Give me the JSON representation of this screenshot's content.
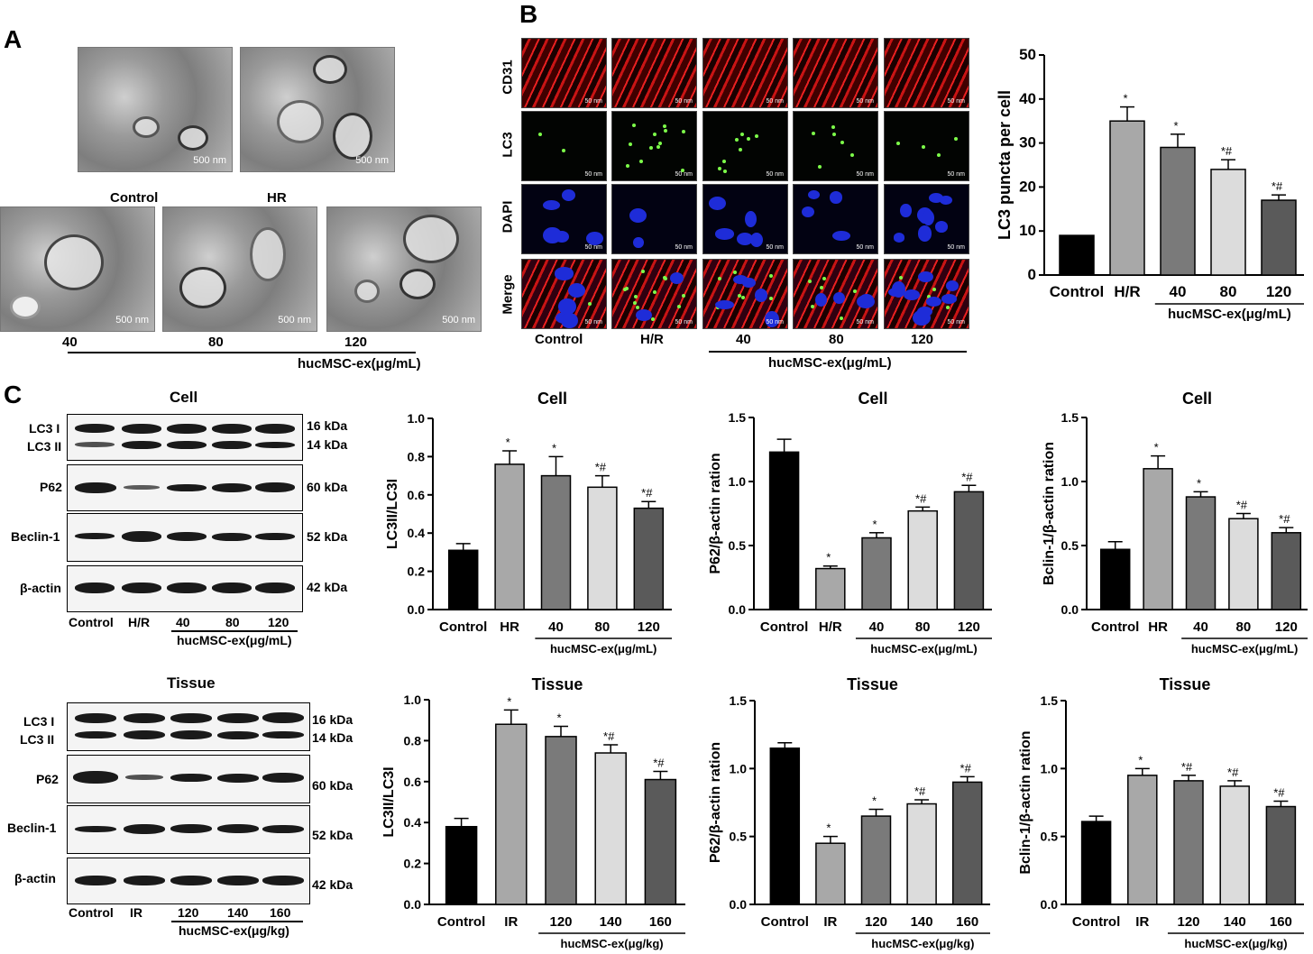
{
  "panels": {
    "a": "A",
    "b": "B",
    "c": "C"
  },
  "panel_a": {
    "scale_label": "500 nm",
    "top_labels": [
      "Control",
      "HR"
    ],
    "bottom_labels": [
      "40",
      "80",
      "120"
    ],
    "group_label": "hucMSC-ex(μg/mL)"
  },
  "panel_b": {
    "row_labels": [
      "CD31",
      "LC3",
      "DAPI",
      "Merge"
    ],
    "col_labels": [
      "Control",
      "H/R",
      "40",
      "80",
      "120"
    ],
    "group_label": "hucMSC-ex(μg/mL)",
    "scale_label": "50 nm"
  },
  "blots": {
    "cell": {
      "title": "Cell",
      "proteins": [
        "LC3 I",
        "LC3 II",
        "P62",
        "Beclin-1",
        "β-actin"
      ],
      "kda": [
        "16 kDa",
        "14 kDa",
        "60 kDa",
        "52 kDa",
        "42 kDa"
      ],
      "lanes": [
        "Control",
        "H/R",
        "40",
        "80",
        "120"
      ],
      "group_label": "hucMSC-ex(μg/mL)"
    },
    "tissue": {
      "title": "Tissue",
      "proteins": [
        "LC3 I",
        "LC3 II",
        "P62",
        "Beclin-1",
        "β-actin"
      ],
      "kda": [
        "16 kDa",
        "14 kDa",
        "60 kDa",
        "52 kDa",
        "42 kDa"
      ],
      "lanes": [
        "Control",
        "IR",
        "120",
        "140",
        "160"
      ],
      "group_label": "hucMSC-ex(μg/kg)"
    }
  },
  "chart_data": [
    {
      "id": "lc3-puncta",
      "type": "bar",
      "title": "",
      "ylabel": "LC3 puncta per cell",
      "ylim": [
        0,
        50
      ],
      "yticks": [
        "0",
        "10",
        "20",
        "30",
        "40",
        "50"
      ],
      "categories": [
        "Control",
        "H/R",
        "40",
        "80",
        "120"
      ],
      "values": [
        9,
        35,
        29,
        24,
        17
      ],
      "errors": [
        0,
        3.2,
        3,
        2.2,
        1.2
      ],
      "marks": [
        "",
        "*",
        "*",
        "*#",
        "*#"
      ],
      "group_label": "hucMSC-ex(μg/mL)"
    },
    {
      "id": "cell-lc3",
      "type": "bar",
      "title": "Cell",
      "ylabel": "LC3II/LC3I",
      "ylim": [
        0,
        1.0
      ],
      "yticks": [
        "0.0",
        "0.2",
        "0.4",
        "0.6",
        "0.8",
        "1.0"
      ],
      "categories": [
        "Control",
        "HR",
        "40",
        "80",
        "120"
      ],
      "values": [
        0.31,
        0.76,
        0.7,
        0.64,
        0.53
      ],
      "errors": [
        0.035,
        0.07,
        0.1,
        0.06,
        0.035
      ],
      "marks": [
        "",
        "*",
        "*",
        "*#",
        "*#"
      ],
      "group_label": "hucMSC-ex(μg/mL)"
    },
    {
      "id": "cell-p62",
      "type": "bar",
      "title": "Cell",
      "ylabel": "P62/β-actin ration",
      "ylim": [
        0,
        1.5
      ],
      "yticks": [
        "0.0",
        "0.5",
        "1.0",
        "1.5"
      ],
      "categories": [
        "Control",
        "H/R",
        "40",
        "80",
        "120"
      ],
      "values": [
        1.23,
        0.32,
        0.56,
        0.77,
        0.92
      ],
      "errors": [
        0.1,
        0.02,
        0.04,
        0.03,
        0.05
      ],
      "marks": [
        "",
        "*",
        "*",
        "*#",
        "*#"
      ],
      "group_label": "hucMSC-ex(μg/mL)"
    },
    {
      "id": "cell-beclin",
      "type": "bar",
      "title": "Cell",
      "ylabel": "Bclin-1/β-actin ration",
      "ylim": [
        0,
        1.5
      ],
      "yticks": [
        "0.0",
        "0.5",
        "1.0",
        "1.5"
      ],
      "categories": [
        "Control",
        "HR",
        "40",
        "80",
        "120"
      ],
      "values": [
        0.47,
        1.1,
        0.88,
        0.71,
        0.6
      ],
      "errors": [
        0.06,
        0.1,
        0.04,
        0.04,
        0.04
      ],
      "marks": [
        "",
        "*",
        "*",
        "*#",
        "*#"
      ],
      "group_label": "hucMSC-ex(μg/mL)"
    },
    {
      "id": "tissue-lc3",
      "type": "bar",
      "title": "Tissue",
      "ylabel": "LC3II/LC3I",
      "ylim": [
        0,
        1.0
      ],
      "yticks": [
        "0.0",
        "0.2",
        "0.4",
        "0.6",
        "0.8",
        "1.0"
      ],
      "categories": [
        "Control",
        "IR",
        "120",
        "140",
        "160"
      ],
      "values": [
        0.38,
        0.88,
        0.82,
        0.74,
        0.61
      ],
      "errors": [
        0.04,
        0.07,
        0.05,
        0.04,
        0.04
      ],
      "marks": [
        "",
        "*",
        "*",
        "*#",
        "*#"
      ],
      "group_label": "hucMSC-ex(μg/kg)"
    },
    {
      "id": "tissue-p62",
      "type": "bar",
      "title": "Tissue",
      "ylabel": "P62/β-actin ration",
      "ylim": [
        0,
        1.5
      ],
      "yticks": [
        "0.0",
        "0.5",
        "1.0",
        "1.5"
      ],
      "categories": [
        "Control",
        "IR",
        "120",
        "140",
        "160"
      ],
      "values": [
        1.15,
        0.45,
        0.65,
        0.74,
        0.9
      ],
      "errors": [
        0.04,
        0.05,
        0.05,
        0.03,
        0.04
      ],
      "marks": [
        "",
        "*",
        "*",
        "*#",
        "*#"
      ],
      "group_label": "hucMSC-ex(μg/kg)"
    },
    {
      "id": "tissue-beclin",
      "type": "bar",
      "title": "Tissue",
      "ylabel": "Bclin-1/β-actin ration",
      "ylim": [
        0,
        1.5
      ],
      "yticks": [
        "0.0",
        "0.5",
        "1.0",
        "1.5"
      ],
      "categories": [
        "Control",
        "IR",
        "120",
        "140",
        "160"
      ],
      "values": [
        0.61,
        0.95,
        0.91,
        0.87,
        0.72
      ],
      "errors": [
        0.04,
        0.05,
        0.04,
        0.04,
        0.04
      ],
      "marks": [
        "",
        "*",
        "*#",
        "*#",
        "*#"
      ],
      "group_label": "hucMSC-ex(μg/kg)"
    }
  ],
  "colors": {
    "bars": [
      "#000000",
      "#a8a8a8",
      "#7a7a7a",
      "#dcdcdc",
      "#5a5a5a"
    ]
  }
}
